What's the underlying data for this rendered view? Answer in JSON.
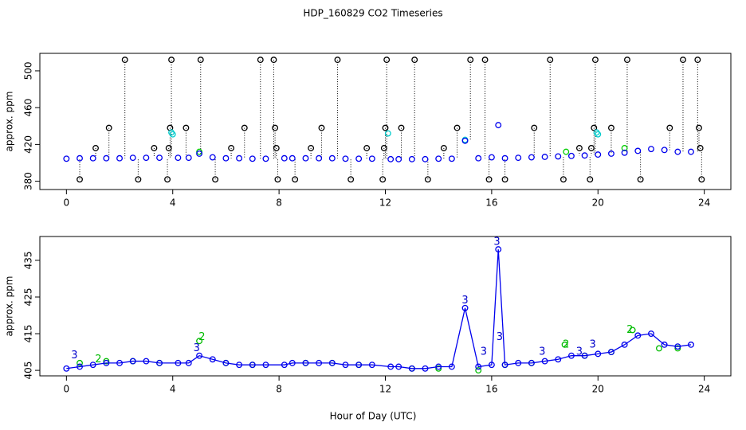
{
  "chart_data": [
    {
      "type": "scatter",
      "title": "HDP_160829  CO2 Timeseries",
      "y_label": "approx. ppm",
      "xlim": [
        -1,
        25
      ],
      "xticks": [
        0,
        4,
        8,
        12,
        16,
        20,
        24
      ],
      "ylim": [
        371,
        519
      ],
      "yticks": [
        380,
        420,
        460,
        500
      ],
      "series": [
        {
          "color": "#000000",
          "style": "points-drop",
          "x": [
            0.5,
            1.1,
            1.6,
            2.2,
            2.7,
            3.3,
            3.8,
            3.85,
            3.9,
            3.95,
            4.5,
            5.05,
            5.6,
            6.2,
            6.7,
            7.3,
            7.8,
            7.85,
            7.9,
            7.95,
            8.6,
            9.2,
            9.6,
            10.2,
            10.7,
            11.3,
            11.9,
            11.95,
            12.0,
            12.05,
            12.6,
            13.1,
            13.6,
            14.2,
            14.7,
            15.2,
            15.75,
            15.9,
            16.5,
            17.6,
            18.2,
            18.7,
            19.3,
            19.7,
            19.75,
            19.85,
            19.9,
            20.5,
            21.1,
            21.6,
            22.7,
            23.2,
            23.75,
            23.8,
            23.85,
            23.9
          ],
          "values": [
            382,
            416,
            438,
            512,
            382,
            416,
            382,
            416,
            438,
            512,
            438,
            512,
            382,
            416,
            438,
            512,
            512,
            438,
            416,
            382,
            382,
            416,
            438,
            512,
            382,
            416,
            382,
            416,
            438,
            512,
            438,
            512,
            382,
            416,
            438,
            512,
            512,
            382,
            382,
            438,
            512,
            382,
            416,
            382,
            416,
            438,
            512,
            438,
            512,
            382,
            438,
            512,
            512,
            438,
            416,
            382
          ]
        },
        {
          "color": "#00cccc",
          "style": "points",
          "x": [
            3.95,
            4.0,
            12.1,
            15.0,
            19.95,
            20.0
          ],
          "values": [
            433,
            431,
            432,
            425,
            433,
            431
          ]
        },
        {
          "color": "#00cc00",
          "style": "points",
          "x": [
            5.0,
            18.8,
            21.0
          ],
          "values": [
            412,
            412,
            416
          ]
        },
        {
          "color": "#0000ee",
          "style": "points",
          "x": [
            0,
            0.5,
            1,
            1.5,
            2,
            2.5,
            3,
            3.5,
            4.2,
            4.6,
            5,
            5.5,
            6,
            6.5,
            7,
            7.5,
            8.2,
            8.5,
            9,
            9.5,
            10,
            10.5,
            11,
            11.5,
            12.2,
            12.5,
            13,
            13.5,
            14,
            14.5,
            15,
            15.5,
            16,
            16.25,
            16.5,
            17,
            17.5,
            18,
            18.5,
            19,
            19.5,
            20,
            20.5,
            21,
            21.5,
            22,
            22.5,
            23,
            23.5
          ],
          "values": [
            404.5,
            405,
            405,
            405,
            405,
            405.5,
            405.5,
            405.5,
            405.5,
            405.5,
            410,
            406,
            405,
            405,
            404.5,
            404.5,
            405,
            405,
            405,
            405,
            405,
            404.5,
            404.5,
            404.5,
            404,
            404,
            404,
            404,
            404.5,
            404.5,
            424,
            405,
            406,
            441,
            405,
            405.5,
            406,
            406.5,
            407,
            407.5,
            408,
            409,
            410,
            411,
            413,
            415,
            414,
            412,
            412
          ]
        }
      ]
    },
    {
      "type": "line",
      "y_label": "approx. ppm",
      "x_label": "Hour of Day (UTC)",
      "xlim": [
        -1,
        25
      ],
      "xticks": [
        0,
        4,
        8,
        12,
        16,
        20,
        24
      ],
      "ylim": [
        403.5,
        441.5
      ],
      "yticks": [
        405,
        415,
        425,
        435
      ],
      "series": [
        {
          "color": "#00bb00",
          "style": "points",
          "x": [
            0.5,
            1.5,
            2.5,
            3.5,
            5,
            6,
            7,
            9,
            10,
            11,
            13,
            14,
            15.5,
            16.5,
            17.5,
            18.75,
            19.5,
            20.5,
            21.3,
            22.3,
            23
          ],
          "values": [
            407,
            407.5,
            407.5,
            407,
            413,
            407,
            406.5,
            407,
            407,
            406.5,
            405.5,
            405.5,
            405,
            406.5,
            407,
            412,
            409,
            410,
            416,
            411,
            411
          ]
        },
        {
          "color": "#0000ee",
          "style": "line-points",
          "x": [
            0,
            0.5,
            1,
            1.5,
            2,
            2.5,
            3,
            3.5,
            4.2,
            4.6,
            5,
            5.5,
            6,
            6.5,
            7,
            7.5,
            8.2,
            8.5,
            9,
            9.5,
            10,
            10.5,
            11,
            11.5,
            12.2,
            12.5,
            13,
            13.5,
            14,
            14.5,
            15,
            15.5,
            16,
            16.25,
            16.5,
            17,
            17.5,
            18,
            18.5,
            19,
            19.5,
            20,
            20.5,
            21,
            21.5,
            22,
            22.5,
            23,
            23.5
          ],
          "values": [
            405.5,
            406,
            406.5,
            407,
            407,
            407.5,
            407.5,
            407,
            407,
            407,
            409,
            408,
            407,
            406.5,
            406.5,
            406.5,
            406.5,
            407,
            407,
            407,
            407,
            406.5,
            406.5,
            406.5,
            406,
            406,
            405.5,
            405.5,
            406,
            406,
            422,
            406,
            406.5,
            438,
            406.5,
            407,
            407,
            407.5,
            408,
            409,
            409,
            409.5,
            410,
            412,
            414.5,
            415,
            412,
            411.5,
            412
          ]
        }
      ],
      "annotations": [
        {
          "x": 0.3,
          "y": 409,
          "label": "3",
          "color": "#0000cc"
        },
        {
          "x": 4.9,
          "y": 411,
          "label": "3",
          "color": "#0000cc"
        },
        {
          "x": 15.0,
          "y": 424,
          "label": "3",
          "color": "#0000cc"
        },
        {
          "x": 15.7,
          "y": 410,
          "label": "3",
          "color": "#0000cc"
        },
        {
          "x": 16.2,
          "y": 440,
          "label": "3",
          "color": "#0000cc"
        },
        {
          "x": 16.3,
          "y": 414,
          "label": "3",
          "color": "#0000cc"
        },
        {
          "x": 17.9,
          "y": 410,
          "label": "3",
          "color": "#0000cc"
        },
        {
          "x": 19.3,
          "y": 410,
          "label": "3",
          "color": "#0000cc"
        },
        {
          "x": 19.8,
          "y": 412,
          "label": "3",
          "color": "#0000cc"
        },
        {
          "x": 1.2,
          "y": 408,
          "label": "2",
          "color": "#00bb00"
        },
        {
          "x": 5.1,
          "y": 414,
          "label": "2",
          "color": "#00bb00"
        },
        {
          "x": 18.8,
          "y": 412,
          "label": "2",
          "color": "#00bb00"
        },
        {
          "x": 21.2,
          "y": 416,
          "label": "2",
          "color": "#00bb00"
        }
      ]
    }
  ]
}
